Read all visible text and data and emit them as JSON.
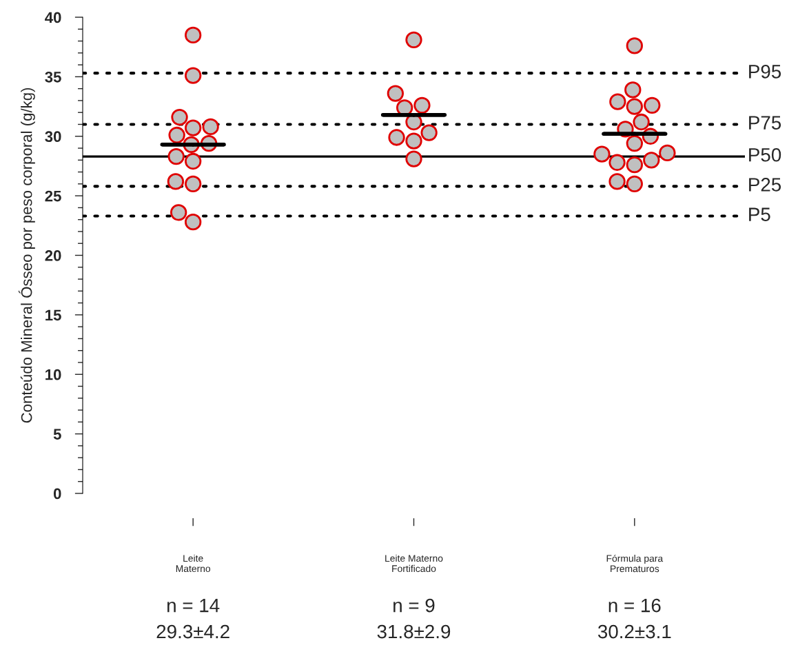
{
  "chart_data": {
    "type": "scatter",
    "ylabel": "Conteúdo Mineral Ósseo por peso corporal (g/kg)",
    "categories": [
      "Leite\nMaterno",
      "Leite Materno\nFortificado",
      "Fórmula para\nPrematuros"
    ],
    "series": [
      {
        "type": "scatter",
        "marker": "circle",
        "color": "#c0c0c0",
        "x": [
          "Leite\nMaterno",
          "Leite\nMaterno",
          "Leite\nMaterno",
          "Leite\nMaterno",
          "Leite\nMaterno",
          "Leite\nMaterno",
          "Leite\nMaterno",
          "Leite\nMaterno",
          "Leite\nMaterno",
          "Leite\nMaterno",
          "Leite\nMaterno",
          "Leite\nMaterno",
          "Leite\nMaterno",
          "Leite\nMaterno",
          "Leite Materno\nFortificado",
          "Leite Materno\nFortificado",
          "Leite Materno\nFortificado",
          "Leite Materno\nFortificado",
          "Leite Materno\nFortificado",
          "Leite Materno\nFortificado",
          "Leite Materno\nFortificado",
          "Leite Materno\nFortificado",
          "Leite Materno\nFortificado",
          "Fórmula para\nPrematuros",
          "Fórmula para\nPrematuros",
          "Fórmula para\nPrematuros",
          "Fórmula para\nPrematuros",
          "Fórmula para\nPrematuros",
          "Fórmula para\nPrematuros",
          "Fórmula para\nPrematuros",
          "Fórmula para\nPrematuros",
          "Fórmula para\nPrematuros",
          "Fórmula para\nPrematuros",
          "Fórmula para\nPrematuros",
          "Fórmula para\nPrematuros",
          "Fórmula para\nPrematuros",
          "Fórmula para\nPrematuros",
          "Fórmula para\nPrematuros",
          "Fórmula para\nPrematuros"
        ],
        "values": [
          38.5,
          35.1,
          31.6,
          30.8,
          30.7,
          30.1,
          29.4,
          29.3,
          28.3,
          27.9,
          26.2,
          26.0,
          23.6,
          22.8,
          38.1,
          33.6,
          32.6,
          32.4,
          31.2,
          30.3,
          29.9,
          29.6,
          28.1,
          37.6,
          33.9,
          32.9,
          32.6,
          32.5,
          31.2,
          30.6,
          30.0,
          29.4,
          28.6,
          28.5,
          28.0,
          27.8,
          27.6,
          26.2,
          26.0
        ]
      },
      {
        "type": "box",
        "color": "#000000",
        "boxes": [
          {
            "low": 29.3,
            "q1": 29.3,
            "median": 29.3,
            "q3": 29.3,
            "high": 29.3
          },
          {
            "low": 31.8,
            "q1": 31.8,
            "median": 31.8,
            "q3": 31.8,
            "high": 31.8
          },
          {
            "low": 30.2,
            "q1": 30.2,
            "median": 30.2,
            "q3": 30.2,
            "high": 30.2
          }
        ]
      }
    ],
    "ylim": [
      0,
      40
    ],
    "yticks": [
      0,
      5,
      10,
      15,
      20,
      25,
      30,
      35,
      40
    ],
    "ref_lines": [
      {
        "axis": "y",
        "value": 35.3,
        "label": "P95",
        "line_style": "dotted",
        "color": "#000000"
      },
      {
        "axis": "y",
        "value": 31.0,
        "label": "P75",
        "line_style": "dotted",
        "color": "#000000"
      },
      {
        "axis": "y",
        "value": 28.3,
        "label": "P50",
        "line_style": "solid",
        "color": "#000000"
      },
      {
        "axis": "y",
        "value": 25.8,
        "label": "P25",
        "line_style": "dotted",
        "color": "#000000"
      },
      {
        "axis": "y",
        "value": 23.3,
        "label": "P5",
        "line_style": "dotted",
        "color": "#000000"
      }
    ],
    "annotations": [
      "n = 14\n29.3±4.2",
      "n = 9\n31.8±2.9",
      "n = 16\n30.2±3.1"
    ],
    "grid": false
  }
}
